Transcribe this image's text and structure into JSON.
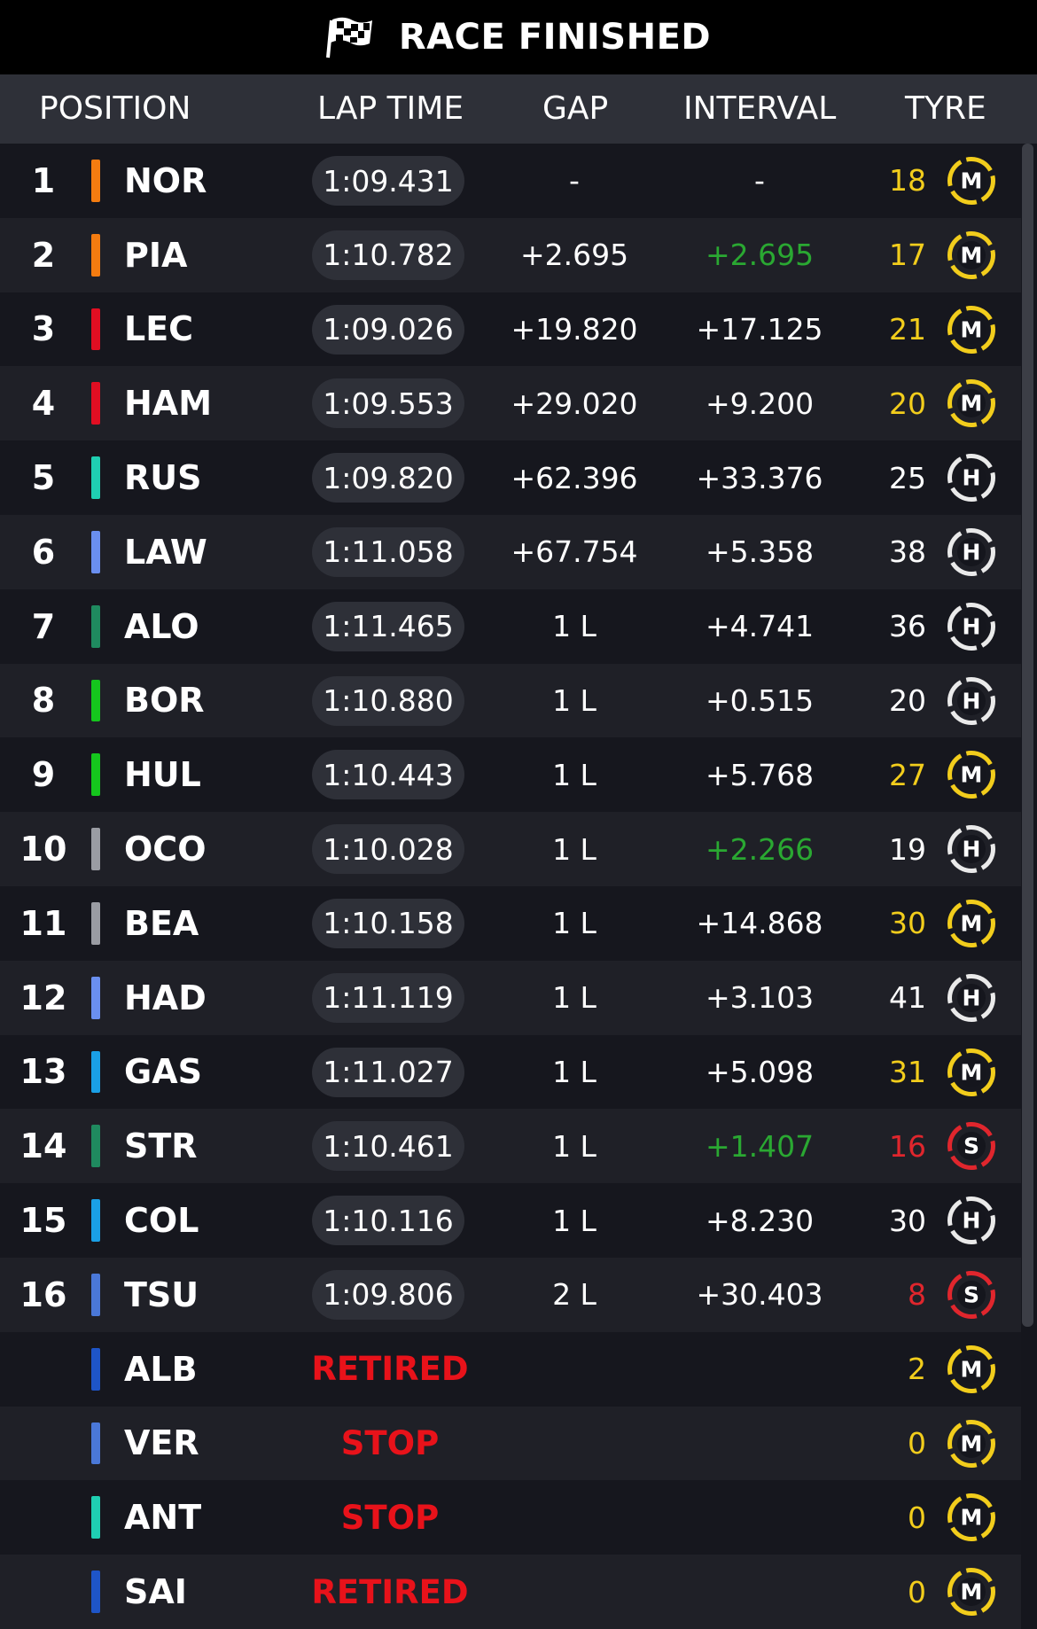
{
  "title": "RACE FINISHED",
  "headers": {
    "position": "POSITION",
    "lap_time": "LAP TIME",
    "gap": "GAP",
    "interval": "INTERVAL",
    "tyre": "TYRE"
  },
  "colors": {
    "background": "#15161d",
    "header": "#2e3038",
    "improved_interval": "#2aa832",
    "retired": "#e8121a",
    "medium": "#f2cd1c",
    "hard": "#eaeaea",
    "soft": "#e0262d"
  },
  "rows": [
    {
      "pos": "1",
      "code": "NOR",
      "team_color": "#f47c10",
      "lap_time": "1:09.431",
      "gap": "-",
      "interval": "-",
      "interval_color": "#ffffff",
      "tyre_laps": "18",
      "tyre": "M",
      "tyre_color": "#f2cd1c"
    },
    {
      "pos": "2",
      "code": "PIA",
      "team_color": "#f47c10",
      "lap_time": "1:10.782",
      "gap": "+2.695",
      "interval": "+2.695",
      "interval_color": "#2aa832",
      "tyre_laps": "17",
      "tyre": "M",
      "tyre_color": "#f2cd1c"
    },
    {
      "pos": "3",
      "code": "LEC",
      "team_color": "#e10e22",
      "lap_time": "1:09.026",
      "gap": "+19.820",
      "interval": "+17.125",
      "interval_color": "#ffffff",
      "tyre_laps": "21",
      "tyre": "M",
      "tyre_color": "#f2cd1c"
    },
    {
      "pos": "4",
      "code": "HAM",
      "team_color": "#e10e22",
      "lap_time": "1:09.553",
      "gap": "+29.020",
      "interval": "+9.200",
      "interval_color": "#ffffff",
      "tyre_laps": "20",
      "tyre": "M",
      "tyre_color": "#f2cd1c"
    },
    {
      "pos": "5",
      "code": "RUS",
      "team_color": "#1fcfb2",
      "lap_time": "1:09.820",
      "gap": "+62.396",
      "interval": "+33.376",
      "interval_color": "#ffffff",
      "tyre_laps": "25",
      "tyre": "H",
      "tyre_color": "#eaeaea"
    },
    {
      "pos": "6",
      "code": "LAW",
      "team_color": "#6a8ff0",
      "lap_time": "1:11.058",
      "gap": "+67.754",
      "interval": "+5.358",
      "interval_color": "#ffffff",
      "tyre_laps": "38",
      "tyre": "H",
      "tyre_color": "#eaeaea"
    },
    {
      "pos": "7",
      "code": "ALO",
      "team_color": "#1f8a5f",
      "lap_time": "1:11.465",
      "gap": "1 L",
      "interval": "+4.741",
      "interval_color": "#ffffff",
      "tyre_laps": "36",
      "tyre": "H",
      "tyre_color": "#eaeaea"
    },
    {
      "pos": "8",
      "code": "BOR",
      "team_color": "#15c61d",
      "lap_time": "1:10.880",
      "gap": "1 L",
      "interval": "+0.515",
      "interval_color": "#ffffff",
      "tyre_laps": "20",
      "tyre": "H",
      "tyre_color": "#eaeaea"
    },
    {
      "pos": "9",
      "code": "HUL",
      "team_color": "#15c61d",
      "lap_time": "1:10.443",
      "gap": "1 L",
      "interval": "+5.768",
      "interval_color": "#ffffff",
      "tyre_laps": "27",
      "tyre": "M",
      "tyre_color": "#f2cd1c"
    },
    {
      "pos": "10",
      "code": "OCO",
      "team_color": "#9a9ca3",
      "lap_time": "1:10.028",
      "gap": "1 L",
      "interval": "+2.266",
      "interval_color": "#2aa832",
      "tyre_laps": "19",
      "tyre": "H",
      "tyre_color": "#eaeaea"
    },
    {
      "pos": "11",
      "code": "BEA",
      "team_color": "#9a9ca3",
      "lap_time": "1:10.158",
      "gap": "1 L",
      "interval": "+14.868",
      "interval_color": "#ffffff",
      "tyre_laps": "30",
      "tyre": "M",
      "tyre_color": "#f2cd1c"
    },
    {
      "pos": "12",
      "code": "HAD",
      "team_color": "#6a8ff0",
      "lap_time": "1:11.119",
      "gap": "1 L",
      "interval": "+3.103",
      "interval_color": "#ffffff",
      "tyre_laps": "41",
      "tyre": "H",
      "tyre_color": "#eaeaea"
    },
    {
      "pos": "13",
      "code": "GAS",
      "team_color": "#1aa0e6",
      "lap_time": "1:11.027",
      "gap": "1 L",
      "interval": "+5.098",
      "interval_color": "#ffffff",
      "tyre_laps": "31",
      "tyre": "M",
      "tyre_color": "#f2cd1c"
    },
    {
      "pos": "14",
      "code": "STR",
      "team_color": "#1f8a5f",
      "lap_time": "1:10.461",
      "gap": "1 L",
      "interval": "+1.407",
      "interval_color": "#2aa832",
      "tyre_laps": "16",
      "tyre": "S",
      "tyre_color": "#e0262d"
    },
    {
      "pos": "15",
      "code": "COL",
      "team_color": "#1aa0e6",
      "lap_time": "1:10.116",
      "gap": "1 L",
      "interval": "+8.230",
      "interval_color": "#ffffff",
      "tyre_laps": "30",
      "tyre": "H",
      "tyre_color": "#eaeaea"
    },
    {
      "pos": "16",
      "code": "TSU",
      "team_color": "#4a78d8",
      "lap_time": "1:09.806",
      "gap": "2 L",
      "interval": "+30.403",
      "interval_color": "#ffffff",
      "tyre_laps": "8",
      "tyre": "S",
      "tyre_color": "#e0262d"
    },
    {
      "pos": "",
      "code": "ALB",
      "team_color": "#1e55c8",
      "status": "RETIRED",
      "tyre_laps": "2",
      "tyre": "M",
      "tyre_color": "#f2cd1c"
    },
    {
      "pos": "",
      "code": "VER",
      "team_color": "#4a78d8",
      "status": "STOP",
      "tyre_laps": "0",
      "tyre": "M",
      "tyre_color": "#f2cd1c"
    },
    {
      "pos": "",
      "code": "ANT",
      "team_color": "#1fcfb2",
      "status": "STOP",
      "tyre_laps": "0",
      "tyre": "M",
      "tyre_color": "#f2cd1c"
    },
    {
      "pos": "",
      "code": "SAI",
      "team_color": "#1e55c8",
      "status": "RETIRED",
      "tyre_laps": "0",
      "tyre": "M",
      "tyre_color": "#f2cd1c"
    }
  ]
}
